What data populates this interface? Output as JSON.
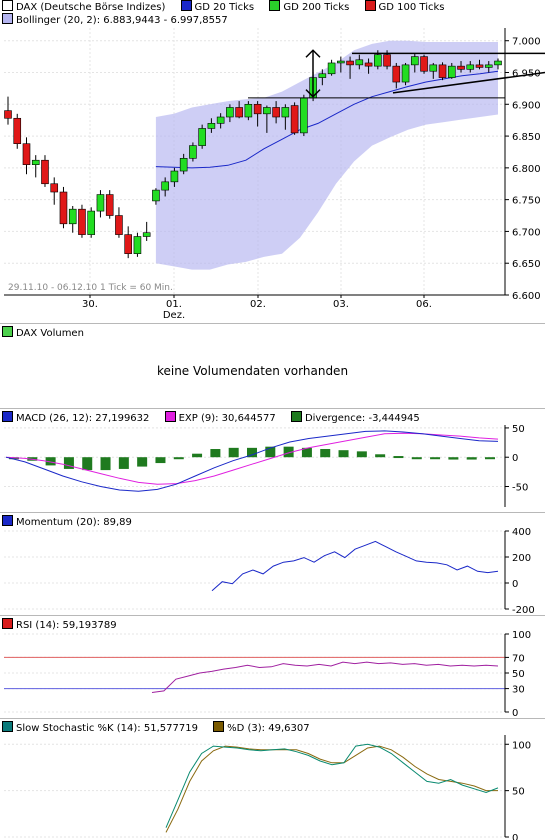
{
  "main": {
    "legend": [
      {
        "label": "DAX (Deutsche Börse Indizes)",
        "color": "#ffffff"
      },
      {
        "label": "GD 20 Ticks",
        "color": "#1a28c8"
      },
      {
        "label": "GD 200 Ticks",
        "color": "#2ad02a"
      },
      {
        "label": "GD 100 Ticks",
        "color": "#d81c1c"
      }
    ],
    "bollinger_label": "Bollinger (20, 2): 6.883,9443 - 6.997,8557",
    "bollinger_color": "#b4b4f0",
    "date_range_note": "29.11.10 - 06.12.10   1 Tick = 60 Min.",
    "y_ticks": [
      "7.000",
      "6.950",
      "6.900",
      "6.850",
      "6.800",
      "6.750",
      "6.700",
      "6.650",
      "6.600"
    ],
    "x_ticks": [
      "30.",
      "01.",
      "02.",
      "03.",
      "06."
    ],
    "x_tick_sub": [
      "",
      "Dez.",
      "",
      "",
      ""
    ]
  },
  "volume": {
    "label": "DAX Volumen",
    "color": "#4cd04c",
    "message": "keine Volumendaten vorhanden"
  },
  "macd": {
    "legend": [
      {
        "label": "MACD (26, 12): 27,199632",
        "color": "#1a28c8"
      },
      {
        "label": "EXP (9): 30,644577",
        "color": "#e020e0"
      },
      {
        "label": "Divergence: -3,444945",
        "color": "#1f7a1f"
      }
    ],
    "y_ticks": [
      "50",
      "0",
      "-50"
    ]
  },
  "momentum": {
    "legend": [
      {
        "label": "Momentum (20): 89,89",
        "color": "#1a28c8"
      }
    ],
    "y_ticks": [
      "400",
      "200",
      "0",
      "-200"
    ]
  },
  "rsi": {
    "legend": [
      {
        "label": "RSI (14): 59,193789",
        "color": "#d81c1c"
      }
    ],
    "y_ticks": [
      "100",
      "70",
      "50",
      "30",
      "0"
    ]
  },
  "stoch": {
    "legend": [
      {
        "label": "Slow Stochastic %K (14): 51,577719",
        "color": "#0a7a7a"
      },
      {
        "label": "%D (3): 49,6307",
        "color": "#7a5a00"
      }
    ],
    "y_ticks": [
      "100",
      "50",
      "0"
    ]
  },
  "chart_data": [
    {
      "type": "candlestick",
      "title": "DAX (Deutsche Börse Indizes)",
      "interval": "1 Tick = 60 Min.",
      "range": "29.11.10 - 06.12.10",
      "ylim": [
        6600,
        7020
      ],
      "candles": [
        [
          6890,
          6912,
          6868,
          6878
        ],
        [
          6878,
          6885,
          6830,
          6838
        ],
        [
          6838,
          6848,
          6790,
          6805
        ],
        [
          6805,
          6820,
          6785,
          6812
        ],
        [
          6812,
          6820,
          6770,
          6775
        ],
        [
          6775,
          6785,
          6742,
          6762
        ],
        [
          6762,
          6770,
          6705,
          6712
        ],
        [
          6712,
          6740,
          6698,
          6735
        ],
        [
          6735,
          6742,
          6690,
          6695
        ],
        [
          6695,
          6738,
          6690,
          6732
        ],
        [
          6732,
          6765,
          6722,
          6758
        ],
        [
          6758,
          6765,
          6720,
          6725
        ],
        [
          6725,
          6738,
          6690,
          6695
        ],
        [
          6695,
          6708,
          6658,
          6665
        ],
        [
          6665,
          6698,
          6660,
          6692
        ],
        [
          6692,
          6715,
          6685,
          6698
        ],
        [
          6748,
          6768,
          6742,
          6765
        ],
        [
          6765,
          6785,
          6755,
          6778
        ],
        [
          6778,
          6800,
          6770,
          6795
        ],
        [
          6795,
          6822,
          6790,
          6815
        ],
        [
          6815,
          6840,
          6810,
          6835
        ],
        [
          6835,
          6868,
          6830,
          6862
        ],
        [
          6862,
          6878,
          6855,
          6870
        ],
        [
          6870,
          6886,
          6862,
          6880
        ],
        [
          6880,
          6900,
          6872,
          6895
        ],
        [
          6895,
          6905,
          6878,
          6880
        ],
        [
          6880,
          6905,
          6875,
          6900
        ],
        [
          6900,
          6905,
          6865,
          6885
        ],
        [
          6885,
          6898,
          6855,
          6895
        ],
        [
          6895,
          6905,
          6870,
          6880
        ],
        [
          6880,
          6900,
          6860,
          6895
        ],
        [
          6898,
          6903,
          6852,
          6855
        ],
        [
          6855,
          6915,
          6850,
          6910
        ],
        [
          6910,
          6950,
          6905,
          6942
        ],
        [
          6942,
          6955,
          6930,
          6948
        ],
        [
          6948,
          6970,
          6945,
          6965
        ],
        [
          6965,
          6975,
          6950,
          6968
        ],
        [
          6968,
          6975,
          6940,
          6962
        ],
        [
          6962,
          6978,
          6955,
          6970
        ],
        [
          6965,
          6972,
          6948,
          6960
        ],
        [
          6960,
          6985,
          6955,
          6978
        ],
        [
          6978,
          6985,
          6955,
          6960
        ],
        [
          6960,
          6965,
          6925,
          6935
        ],
        [
          6935,
          6965,
          6930,
          6962
        ],
        [
          6962,
          6980,
          6950,
          6975
        ],
        [
          6975,
          6978,
          6948,
          6952
        ],
        [
          6952,
          6965,
          6940,
          6962
        ],
        [
          6962,
          6966,
          6938,
          6942
        ],
        [
          6942,
          6965,
          6940,
          6960
        ],
        [
          6960,
          6968,
          6950,
          6955
        ],
        [
          6955,
          6968,
          6950,
          6962
        ],
        [
          6962,
          6970,
          6955,
          6958
        ],
        [
          6958,
          6968,
          6950,
          6962
        ],
        [
          6962,
          6972,
          6955,
          6968
        ]
      ],
      "gd20": [
        6802,
        6801,
        6800,
        6801,
        6804,
        6812,
        6830,
        6845,
        6860,
        6870,
        6885,
        6900,
        6912,
        6920,
        6928,
        6935,
        6940,
        6945,
        6948,
        6952
      ],
      "gd20_start_index": 16,
      "bollinger_upper": [
        6880,
        6885,
        6895,
        6900,
        6905,
        6908,
        6910,
        6920,
        6935,
        6950,
        6965,
        6985,
        6995,
        7000,
        7000,
        6998,
        6998,
        6998,
        6998,
        6998
      ],
      "bollinger_lower": [
        6650,
        6645,
        6640,
        6640,
        6648,
        6652,
        6660,
        6665,
        6690,
        6730,
        6775,
        6810,
        6835,
        6848,
        6860,
        6868,
        6872,
        6876,
        6880,
        6884
      ],
      "band_start_index": 16
    },
    {
      "type": "line",
      "title": "MACD (26, 12)",
      "ylim": [
        -85,
        55
      ],
      "series": [
        {
          "name": "MACD (26, 12)",
          "values": [
            0,
            -8,
            -20,
            -32,
            -42,
            -50,
            -56,
            -58,
            -55,
            -46,
            -32,
            -18,
            -6,
            4,
            16,
            26,
            32,
            36,
            40,
            44,
            45,
            43,
            40,
            36,
            32,
            28,
            27
          ]
        },
        {
          "name": "EXP (9)",
          "values": [
            0,
            -2,
            -6,
            -12,
            -20,
            -28,
            -36,
            -43,
            -46,
            -45,
            -40,
            -32,
            -22,
            -12,
            -2,
            8,
            16,
            22,
            28,
            34,
            40,
            41,
            40,
            38,
            36,
            33,
            31
          ]
        },
        {
          "name": "Divergence",
          "values": [
            0,
            -6,
            -14,
            -20,
            -22,
            -22,
            -20,
            -16,
            -10,
            -2,
            6,
            14,
            16,
            16,
            18,
            18,
            16,
            14,
            12,
            10,
            5,
            2,
            0,
            -2,
            -4,
            -4,
            -3
          ]
        }
      ]
    },
    {
      "type": "line",
      "title": "Momentum (20)",
      "ylim": [
        -200,
        400
      ],
      "values": [
        -60,
        10,
        -5,
        70,
        100,
        70,
        130,
        160,
        170,
        195,
        160,
        210,
        240,
        195,
        260,
        290,
        320,
        280,
        240,
        205,
        170,
        160,
        155,
        140,
        100,
        130,
        90,
        80,
        90
      ]
    },
    {
      "type": "line",
      "title": "RSI (14)",
      "ylim": [
        0,
        100
      ],
      "reference_lines": [
        70,
        30
      ],
      "values": [
        25,
        27,
        42,
        46,
        50,
        52,
        55,
        57,
        60,
        57,
        58,
        62,
        60,
        59,
        61,
        59,
        64,
        62,
        64,
        62,
        63,
        61,
        62,
        60,
        61,
        59,
        60,
        59,
        60,
        59
      ]
    },
    {
      "type": "line",
      "title": "Slow Stochastic",
      "ylim": [
        0,
        110
      ],
      "series": [
        {
          "name": "Slow Stochastic %K (14)",
          "values": [
            10,
            40,
            70,
            90,
            98,
            97,
            96,
            94,
            93,
            94,
            95,
            92,
            88,
            82,
            78,
            80,
            98,
            100,
            97,
            90,
            80,
            70,
            60,
            58,
            62,
            56,
            52,
            48,
            53
          ]
        },
        {
          "name": "%D (3)",
          "values": [
            5,
            30,
            60,
            82,
            93,
            98,
            97,
            95,
            94,
            94,
            94,
            94,
            90,
            84,
            80,
            80,
            88,
            96,
            98,
            94,
            86,
            76,
            68,
            62,
            60,
            58,
            55,
            50,
            50
          ]
        }
      ]
    }
  ]
}
